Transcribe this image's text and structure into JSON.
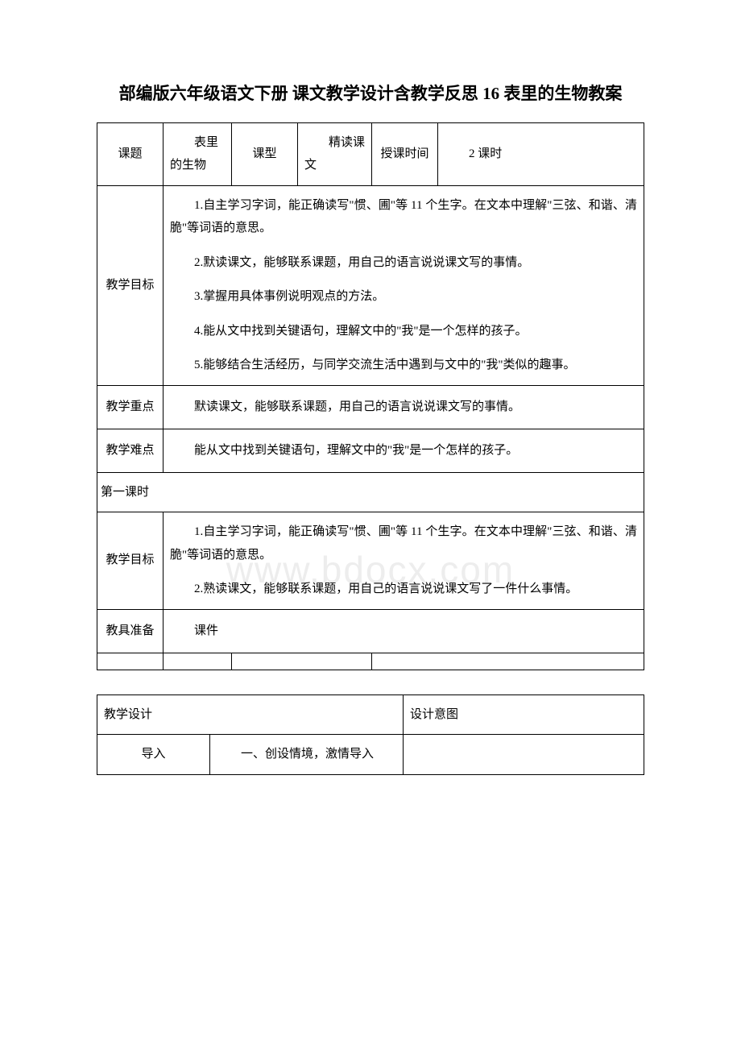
{
  "title": "部编版六年级语文下册 课文教学设计含教学反思 16 表里的生物教案",
  "watermark": "www.bdocx.com",
  "table1": {
    "row1": {
      "c1": "课题",
      "c2": "表里的生物",
      "c3": "课型",
      "c4": "精读课文",
      "c5": "授课时间",
      "c6": "2 课时"
    },
    "goals_label": "教学目标",
    "goals": [
      "1.自主学习字词，能正确读写\"惯、圃\"等 11 个生字。在文本中理解\"三弦、和谐、清脆\"等词语的意思。",
      "2.默读课文，能够联系课题，用自己的语言说说课文写的事情。",
      "3.掌握用具体事例说明观点的方法。",
      "4.能从文中找到关键语句，理解文中的\"我\"是一个怎样的孩子。",
      "5.能够结合生活经历，与同学交流生活中遇到与文中的\"我\"类似的趣事。"
    ],
    "focus_label": "教学重点",
    "focus": "默读课文，能够联系课题，用自己的语言说说课文写的事情。",
    "difficulty_label": "教学难点",
    "difficulty": "能从文中找到关键语句，理解文中的\"我\"是一个怎样的孩子。",
    "section": "第一课时",
    "goals2_label": "教学目标",
    "goals2": [
      "1.自主学习字词，能正确读写\"惯、圃\"等 11 个生字。在文本中理解\"三弦、和谐、清脆\"等词语的意思。",
      "2.熟读课文，能够联系课题，用自己的语言说说课文写了一件什么事情。"
    ],
    "tools_label": "教具准备",
    "tools": "课件"
  },
  "table2": {
    "h1": "教学设计",
    "h2": "设计意图",
    "r2c1": "导入",
    "r2c2": "一、创设情境，激情导入"
  }
}
